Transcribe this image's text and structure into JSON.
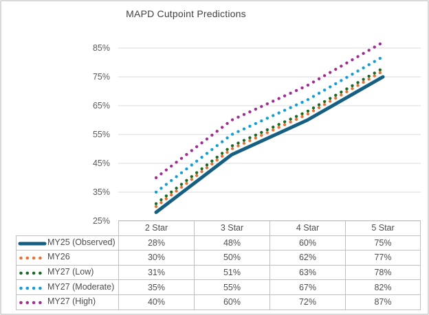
{
  "colors": {
    "background": "#FFFFFF",
    "frame_border": "#D9D9D9",
    "gridline": "#D9D9D9",
    "table_border": "#BFBFBF",
    "axis_text": "#595959",
    "title_text": "#404040"
  },
  "chart_data": {
    "type": "line",
    "title": "MAPD Cutpoint Predictions",
    "xlabel": "",
    "ylabel": "",
    "categories": [
      "2 Star",
      "3 Star",
      "4 Star",
      "5 Star"
    ],
    "series": [
      {
        "name": "MY25 (Observed)",
        "values": [
          28,
          48,
          60,
          75
        ],
        "color": "#156082",
        "line_style": "solid"
      },
      {
        "name": "MY26",
        "values": [
          30,
          50,
          62,
          77
        ],
        "color": "#E97132",
        "line_style": "dotted"
      },
      {
        "name": "MY27 (Low)",
        "values": [
          31,
          51,
          63,
          78
        ],
        "color": "#196B24",
        "line_style": "dotted"
      },
      {
        "name": "MY27 (Moderate)",
        "values": [
          35,
          55,
          67,
          82
        ],
        "color": "#0F9ED5",
        "line_style": "dotted"
      },
      {
        "name": "MY27 (High)",
        "values": [
          40,
          60,
          72,
          87
        ],
        "color": "#A02B93",
        "line_style": "dotted"
      }
    ],
    "ylim": [
      25,
      85
    ],
    "y_tick_step": 10,
    "y_tick_labels": [
      "25%",
      "35%",
      "45%",
      "55%",
      "65%",
      "75%",
      "85%"
    ],
    "value_suffix": "%",
    "grid": "horizontal",
    "legend_position": "data-table-left",
    "data_table_shown": true
  }
}
